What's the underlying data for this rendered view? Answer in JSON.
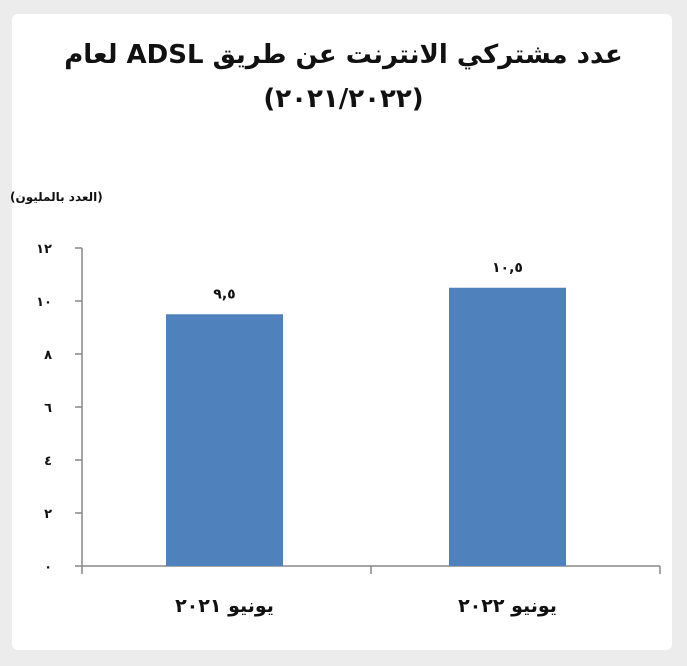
{
  "chart_data": {
    "type": "bar",
    "title": "عدد مشتركي الانترنت عن طريق ADSL لعام",
    "subtitle": "(٢٠٢١/٢٠٢٢)",
    "ylabel": "(العدد بالمليون)",
    "xlabel": "",
    "categories": [
      "يونيو ٢٠٢١",
      "يونيو ٢٠٢٢"
    ],
    "values": [
      9.5,
      10.5
    ],
    "data_labels": [
      "٩,٥",
      "١٠,٥"
    ],
    "ylim": [
      0,
      12
    ],
    "yticks": [
      0,
      2,
      4,
      6,
      8,
      10,
      12
    ],
    "ytick_labels": [
      "٠",
      "٢",
      "٤",
      "٦",
      "٨",
      "١٠",
      "١٢"
    ],
    "grid": false,
    "legend": "none",
    "bar_color": "#4f81bd",
    "axis_color": "#888888"
  }
}
